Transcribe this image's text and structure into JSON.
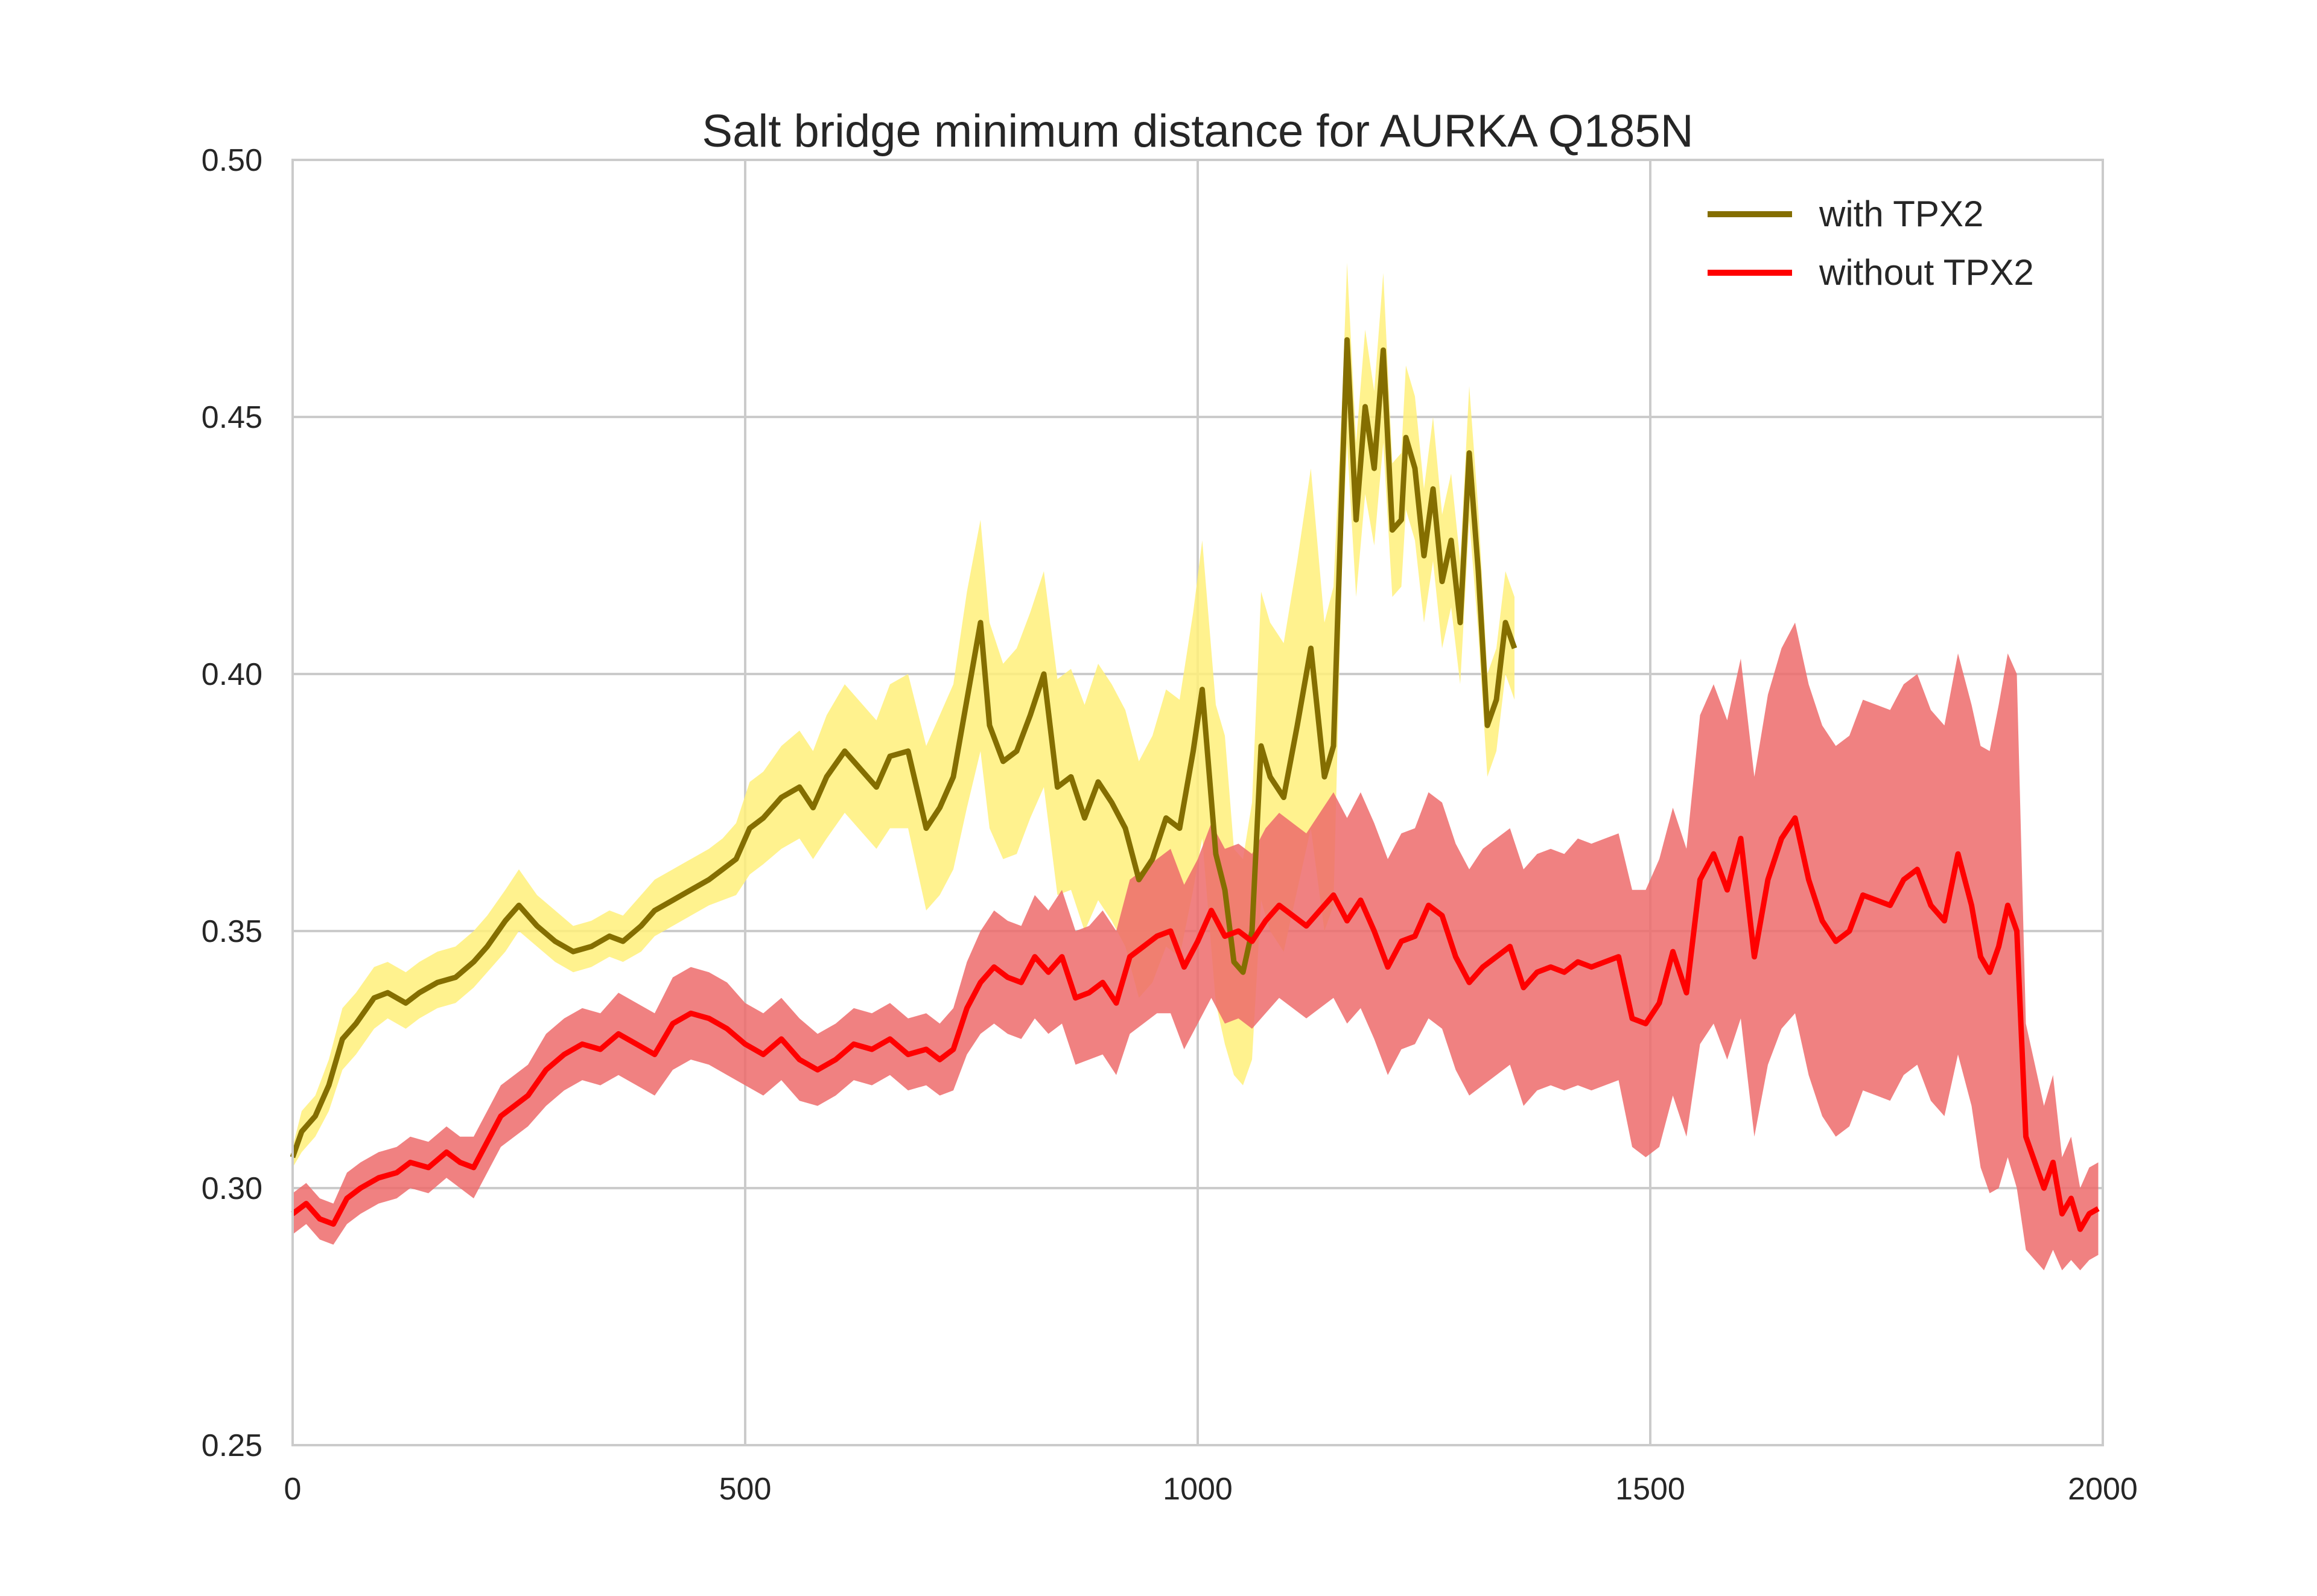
{
  "colors": {
    "with_line": "#846e00",
    "with_band": "#fff07a",
    "without_line": "#ff0000",
    "without_band": "#ed6b6b",
    "grid": "#cbcbcb",
    "text": "#262626"
  },
  "chart_data": {
    "type": "line",
    "title": "Salt bridge minimum distance for AURKA Q185N",
    "xlabel": "",
    "ylabel": "",
    "xlim": [
      0,
      2000
    ],
    "ylim": [
      0.25,
      0.5
    ],
    "xticks": [
      "0",
      "500",
      "1000",
      "1500",
      "2000"
    ],
    "yticks": [
      "0.25",
      "0.30",
      "0.35",
      "0.40",
      "0.45",
      "0.50"
    ],
    "grid": true,
    "legend_position": "top-right",
    "series": [
      {
        "name": "with TPX2",
        "band": "shaded interval",
        "x": [
          0,
          10,
          25,
          40,
          55,
          70,
          90,
          105,
          125,
          140,
          160,
          180,
          200,
          215,
          235,
          250,
          270,
          290,
          310,
          330,
          350,
          365,
          385,
          400,
          420,
          440,
          460,
          475,
          490,
          505,
          520,
          540,
          560,
          575,
          590,
          610,
          625,
          645,
          660,
          680,
          700,
          715,
          730,
          745,
          760,
          770,
          785,
          800,
          815,
          830,
          845,
          860,
          875,
          890,
          905,
          920,
          935,
          950,
          965,
          980,
          995,
          1005,
          1020,
          1030,
          1040,
          1050,
          1060,
          1070,
          1080,
          1095,
          1110,
          1125,
          1140,
          1150,
          1160,
          1165,
          1175,
          1185,
          1195,
          1205,
          1215,
          1225,
          1230,
          1240,
          1250,
          1260,
          1270,
          1280,
          1290,
          1300,
          1310,
          1320,
          1330,
          1340,
          1350
        ],
        "y": [
          0.306,
          0.311,
          0.314,
          0.32,
          0.329,
          0.332,
          0.337,
          0.338,
          0.336,
          0.338,
          0.34,
          0.341,
          0.344,
          0.347,
          0.352,
          0.355,
          0.351,
          0.348,
          0.346,
          0.347,
          0.349,
          0.348,
          0.351,
          0.354,
          0.356,
          0.358,
          0.36,
          0.362,
          0.364,
          0.37,
          0.372,
          0.376,
          0.378,
          0.374,
          0.38,
          0.385,
          0.382,
          0.378,
          0.384,
          0.385,
          0.37,
          0.374,
          0.38,
          0.395,
          0.41,
          0.39,
          0.383,
          0.385,
          0.392,
          0.4,
          0.378,
          0.38,
          0.372,
          0.379,
          0.375,
          0.37,
          0.36,
          0.364,
          0.372,
          0.37,
          0.385,
          0.397,
          0.365,
          0.358,
          0.344,
          0.342,
          0.35,
          0.386,
          0.38,
          0.376,
          0.39,
          0.405,
          0.38,
          0.386,
          0.44,
          0.465,
          0.43,
          0.452,
          0.44,
          0.463,
          0.428,
          0.43,
          0.446,
          0.44,
          0.423,
          0.436,
          0.418,
          0.426,
          0.41,
          0.443,
          0.42,
          0.39,
          0.395,
          0.41,
          0.405
        ],
        "lower": [
          0.304,
          0.307,
          0.31,
          0.315,
          0.323,
          0.326,
          0.331,
          0.333,
          0.331,
          0.333,
          0.335,
          0.336,
          0.339,
          0.342,
          0.346,
          0.35,
          0.347,
          0.344,
          0.342,
          0.343,
          0.345,
          0.344,
          0.346,
          0.349,
          0.351,
          0.353,
          0.355,
          0.356,
          0.357,
          0.361,
          0.363,
          0.366,
          0.368,
          0.364,
          0.368,
          0.373,
          0.37,
          0.366,
          0.37,
          0.37,
          0.354,
          0.357,
          0.362,
          0.374,
          0.385,
          0.37,
          0.364,
          0.365,
          0.372,
          0.378,
          0.357,
          0.358,
          0.35,
          0.356,
          0.352,
          0.347,
          0.337,
          0.34,
          0.347,
          0.345,
          0.358,
          0.368,
          0.336,
          0.328,
          0.322,
          0.32,
          0.325,
          0.356,
          0.35,
          0.346,
          0.358,
          0.37,
          0.35,
          0.355,
          0.425,
          0.445,
          0.415,
          0.435,
          0.425,
          0.445,
          0.415,
          0.417,
          0.432,
          0.426,
          0.41,
          0.422,
          0.405,
          0.413,
          0.398,
          0.43,
          0.408,
          0.38,
          0.385,
          0.4,
          0.395
        ],
        "upper": [
          0.308,
          0.315,
          0.318,
          0.325,
          0.335,
          0.338,
          0.343,
          0.344,
          0.342,
          0.344,
          0.346,
          0.347,
          0.35,
          0.353,
          0.358,
          0.362,
          0.357,
          0.354,
          0.351,
          0.352,
          0.354,
          0.353,
          0.357,
          0.36,
          0.362,
          0.364,
          0.366,
          0.368,
          0.371,
          0.379,
          0.381,
          0.386,
          0.389,
          0.385,
          0.392,
          0.398,
          0.395,
          0.391,
          0.398,
          0.4,
          0.386,
          0.392,
          0.398,
          0.416,
          0.43,
          0.41,
          0.402,
          0.405,
          0.412,
          0.42,
          0.399,
          0.401,
          0.394,
          0.402,
          0.398,
          0.393,
          0.383,
          0.388,
          0.397,
          0.395,
          0.412,
          0.426,
          0.394,
          0.388,
          0.366,
          0.364,
          0.375,
          0.416,
          0.41,
          0.406,
          0.422,
          0.44,
          0.41,
          0.417,
          0.455,
          0.48,
          0.445,
          0.467,
          0.455,
          0.478,
          0.441,
          0.443,
          0.46,
          0.454,
          0.436,
          0.45,
          0.431,
          0.439,
          0.422,
          0.456,
          0.432,
          0.4,
          0.405,
          0.42,
          0.415
        ]
      },
      {
        "name": "without TPX2",
        "band": "shaded interval",
        "x": [
          0,
          15,
          30,
          45,
          60,
          75,
          95,
          115,
          130,
          150,
          170,
          185,
          200,
          215,
          230,
          245,
          260,
          280,
          300,
          320,
          340,
          360,
          380,
          400,
          420,
          440,
          460,
          480,
          500,
          520,
          540,
          560,
          580,
          600,
          620,
          640,
          660,
          680,
          700,
          715,
          730,
          745,
          760,
          775,
          790,
          805,
          820,
          835,
          850,
          865,
          880,
          895,
          910,
          925,
          940,
          955,
          970,
          985,
          1000,
          1015,
          1030,
          1045,
          1060,
          1075,
          1090,
          1105,
          1120,
          1135,
          1150,
          1165,
          1180,
          1195,
          1210,
          1225,
          1240,
          1255,
          1270,
          1285,
          1300,
          1315,
          1330,
          1345,
          1360,
          1375,
          1390,
          1405,
          1420,
          1435,
          1450,
          1465,
          1480,
          1495,
          1510,
          1525,
          1540,
          1555,
          1570,
          1585,
          1600,
          1615,
          1630,
          1645,
          1660,
          1675,
          1690,
          1705,
          1720,
          1735,
          1750,
          1765,
          1780,
          1795,
          1810,
          1825,
          1840,
          1855,
          1865,
          1875,
          1885,
          1895,
          1905,
          1915,
          1925,
          1935,
          1945,
          1955,
          1965,
          1975,
          1985,
          1995
        ],
        "y": [
          0.295,
          0.297,
          0.294,
          0.293,
          0.298,
          0.3,
          0.302,
          0.303,
          0.305,
          0.304,
          0.307,
          0.305,
          0.304,
          0.309,
          0.314,
          0.316,
          0.318,
          0.323,
          0.326,
          0.328,
          0.327,
          0.33,
          0.328,
          0.326,
          0.332,
          0.334,
          0.333,
          0.331,
          0.328,
          0.326,
          0.329,
          0.325,
          0.323,
          0.325,
          0.328,
          0.327,
          0.329,
          0.326,
          0.327,
          0.325,
          0.327,
          0.335,
          0.34,
          0.343,
          0.341,
          0.34,
          0.345,
          0.342,
          0.345,
          0.337,
          0.338,
          0.34,
          0.336,
          0.345,
          0.347,
          0.349,
          0.35,
          0.343,
          0.348,
          0.354,
          0.349,
          0.35,
          0.348,
          0.352,
          0.355,
          0.353,
          0.351,
          0.354,
          0.357,
          0.352,
          0.356,
          0.35,
          0.343,
          0.348,
          0.349,
          0.355,
          0.353,
          0.345,
          0.34,
          0.343,
          0.345,
          0.347,
          0.339,
          0.342,
          0.343,
          0.342,
          0.344,
          0.343,
          0.344,
          0.345,
          0.333,
          0.332,
          0.336,
          0.346,
          0.338,
          0.36,
          0.365,
          0.358,
          0.368,
          0.345,
          0.36,
          0.368,
          0.372,
          0.36,
          0.352,
          0.348,
          0.35,
          0.357,
          0.356,
          0.355,
          0.36,
          0.362,
          0.355,
          0.352,
          0.365,
          0.355,
          0.345,
          0.342,
          0.347,
          0.355,
          0.35,
          0.31,
          0.305,
          0.3,
          0.305,
          0.295,
          0.298,
          0.292,
          0.295,
          0.296
        ],
        "lower": [
          0.291,
          0.293,
          0.29,
          0.289,
          0.293,
          0.295,
          0.297,
          0.298,
          0.3,
          0.299,
          0.302,
          0.3,
          0.298,
          0.303,
          0.308,
          0.31,
          0.312,
          0.316,
          0.319,
          0.321,
          0.32,
          0.322,
          0.32,
          0.318,
          0.323,
          0.325,
          0.324,
          0.322,
          0.32,
          0.318,
          0.321,
          0.317,
          0.316,
          0.318,
          0.321,
          0.32,
          0.322,
          0.319,
          0.32,
          0.318,
          0.319,
          0.326,
          0.33,
          0.332,
          0.33,
          0.329,
          0.333,
          0.33,
          0.332,
          0.324,
          0.325,
          0.326,
          0.322,
          0.33,
          0.332,
          0.334,
          0.334,
          0.327,
          0.332,
          0.337,
          0.332,
          0.333,
          0.331,
          0.334,
          0.337,
          0.335,
          0.333,
          0.335,
          0.337,
          0.332,
          0.335,
          0.329,
          0.322,
          0.327,
          0.328,
          0.333,
          0.331,
          0.323,
          0.318,
          0.32,
          0.322,
          0.324,
          0.316,
          0.319,
          0.32,
          0.319,
          0.32,
          0.319,
          0.32,
          0.321,
          0.308,
          0.306,
          0.308,
          0.318,
          0.31,
          0.328,
          0.332,
          0.325,
          0.333,
          0.31,
          0.324,
          0.331,
          0.334,
          0.322,
          0.314,
          0.31,
          0.312,
          0.319,
          0.318,
          0.317,
          0.322,
          0.324,
          0.317,
          0.314,
          0.326,
          0.316,
          0.304,
          0.299,
          0.3,
          0.306,
          0.3,
          0.288,
          0.286,
          0.284,
          0.288,
          0.284,
          0.286,
          0.284,
          0.286,
          0.287
        ],
        "upper": [
          0.299,
          0.301,
          0.298,
          0.297,
          0.303,
          0.305,
          0.307,
          0.308,
          0.31,
          0.309,
          0.312,
          0.31,
          0.31,
          0.315,
          0.32,
          0.322,
          0.324,
          0.33,
          0.333,
          0.335,
          0.334,
          0.338,
          0.336,
          0.334,
          0.341,
          0.343,
          0.342,
          0.34,
          0.336,
          0.334,
          0.337,
          0.333,
          0.33,
          0.332,
          0.335,
          0.334,
          0.336,
          0.333,
          0.334,
          0.332,
          0.335,
          0.344,
          0.35,
          0.354,
          0.352,
          0.351,
          0.357,
          0.354,
          0.358,
          0.35,
          0.351,
          0.354,
          0.35,
          0.36,
          0.362,
          0.364,
          0.366,
          0.359,
          0.364,
          0.371,
          0.366,
          0.367,
          0.365,
          0.37,
          0.373,
          0.371,
          0.369,
          0.373,
          0.377,
          0.372,
          0.377,
          0.371,
          0.364,
          0.369,
          0.37,
          0.377,
          0.375,
          0.367,
          0.362,
          0.366,
          0.368,
          0.37,
          0.362,
          0.365,
          0.366,
          0.365,
          0.368,
          0.367,
          0.368,
          0.369,
          0.358,
          0.358,
          0.364,
          0.374,
          0.366,
          0.392,
          0.398,
          0.391,
          0.403,
          0.38,
          0.396,
          0.405,
          0.41,
          0.398,
          0.39,
          0.386,
          0.388,
          0.395,
          0.394,
          0.393,
          0.398,
          0.4,
          0.393,
          0.39,
          0.404,
          0.394,
          0.386,
          0.385,
          0.394,
          0.404,
          0.4,
          0.332,
          0.324,
          0.316,
          0.322,
          0.306,
          0.31,
          0.3,
          0.304,
          0.305
        ]
      }
    ]
  }
}
